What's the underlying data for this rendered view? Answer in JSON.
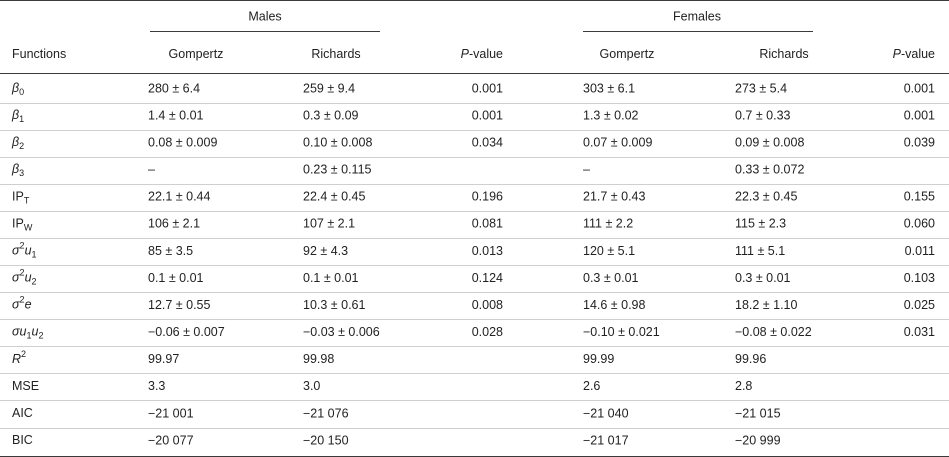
{
  "table": {
    "groups": [
      "Males",
      "Females"
    ],
    "columns": [
      [
        {
          "text": "Functions"
        }
      ],
      [
        {
          "text": "Gompertz"
        }
      ],
      [
        {
          "text": "Richards"
        }
      ],
      [
        {
          "text": "P",
          "style": "i"
        },
        {
          "text": "-value"
        }
      ],
      [
        {
          "text": "Gompertz"
        }
      ],
      [
        {
          "text": "Richards"
        }
      ],
      [
        {
          "text": "P",
          "style": "i"
        },
        {
          "text": "-value"
        }
      ]
    ],
    "rows": [
      {
        "label": [
          {
            "text": "β",
            "style": "i"
          },
          {
            "text": "0",
            "style": "sub"
          }
        ],
        "cells": [
          "280 ± 6.4",
          "259 ± 9.4",
          "0.001",
          "303 ± 6.1",
          "273 ± 5.4",
          "0.001"
        ]
      },
      {
        "label": [
          {
            "text": "β",
            "style": "i"
          },
          {
            "text": "1",
            "style": "sub"
          }
        ],
        "cells": [
          "1.4 ± 0.01",
          "0.3 ± 0.09",
          "0.001",
          "1.3 ± 0.02",
          "0.7 ± 0.33",
          "0.001"
        ]
      },
      {
        "label": [
          {
            "text": "β",
            "style": "i"
          },
          {
            "text": "2",
            "style": "sub"
          }
        ],
        "cells": [
          "0.08 ± 0.009",
          "0.10 ± 0.008",
          "0.034",
          "0.07 ± 0.009",
          "0.09 ± 0.008",
          "0.039"
        ]
      },
      {
        "label": [
          {
            "text": "β",
            "style": "i"
          },
          {
            "text": "3",
            "style": "sub"
          }
        ],
        "cells": [
          "–",
          "0.23 ± 0.115",
          null,
          "–",
          "0.33 ± 0.072",
          null
        ]
      },
      {
        "label": [
          {
            "text": "IP"
          },
          {
            "text": "T",
            "style": "sub"
          }
        ],
        "cells": [
          "22.1 ± 0.44",
          "22.4 ± 0.45",
          "0.196",
          "21.7 ± 0.43",
          "22.3 ± 0.45",
          "0.155"
        ]
      },
      {
        "label": [
          {
            "text": "IP"
          },
          {
            "text": "W",
            "style": "sub"
          }
        ],
        "cells": [
          "106 ± 2.1",
          "107 ± 2.1",
          "0.081",
          "111 ± 2.2",
          "115 ± 2.3",
          "0.060"
        ]
      },
      {
        "label": [
          {
            "text": "σ",
            "style": "i"
          },
          {
            "text": "2",
            "style": "sup"
          },
          {
            "text": "u",
            "style": "i"
          },
          {
            "text": "1",
            "style": "sub"
          }
        ],
        "cells": [
          "85 ± 3.5",
          "92 ± 4.3",
          "0.013",
          "120 ± 5.1",
          "111 ± 5.1",
          "0.011"
        ]
      },
      {
        "label": [
          {
            "text": "σ",
            "style": "i"
          },
          {
            "text": "2",
            "style": "sup"
          },
          {
            "text": "u",
            "style": "i"
          },
          {
            "text": "2",
            "style": "sub"
          }
        ],
        "cells": [
          "0.1 ± 0.01",
          "0.1 ± 0.01",
          "0.124",
          "0.3 ± 0.01",
          "0.3 ± 0.01",
          "0.103"
        ]
      },
      {
        "label": [
          {
            "text": "σ",
            "style": "i"
          },
          {
            "text": "2",
            "style": "sup"
          },
          {
            "text": "e",
            "style": "i"
          }
        ],
        "cells": [
          "12.7 ± 0.55",
          "10.3 ± 0.61",
          "0.008",
          "14.6 ± 0.98",
          "18.2 ± 1.10",
          "0.025"
        ]
      },
      {
        "label": [
          {
            "text": "σu",
            "style": "i"
          },
          {
            "text": "1",
            "style": "sub"
          },
          {
            "text": "u",
            "style": "i"
          },
          {
            "text": "2",
            "style": "sub"
          }
        ],
        "cells": [
          "−0.06 ± 0.007",
          "−0.03 ± 0.006",
          "0.028",
          "−0.10 ± 0.021",
          "−0.08 ± 0.022",
          "0.031"
        ]
      },
      {
        "label": [
          {
            "text": "R",
            "style": "i"
          },
          {
            "text": "2",
            "style": "sup"
          }
        ],
        "cells": [
          "99.97",
          "99.98",
          null,
          "99.99",
          "99.96",
          null
        ]
      },
      {
        "label": [
          {
            "text": "MSE"
          }
        ],
        "cells": [
          "3.3",
          "3.0",
          null,
          "2.6",
          "2.8",
          null
        ]
      },
      {
        "label": [
          {
            "text": "AIC"
          }
        ],
        "cells": [
          "−21 001",
          "−21 076",
          null,
          "−21 040",
          "−21 015",
          null
        ]
      },
      {
        "label": [
          {
            "text": "BIC"
          }
        ],
        "cells": [
          "−20 077",
          "−20 150",
          null,
          "−21 017",
          "−20 999",
          null
        ]
      }
    ]
  }
}
